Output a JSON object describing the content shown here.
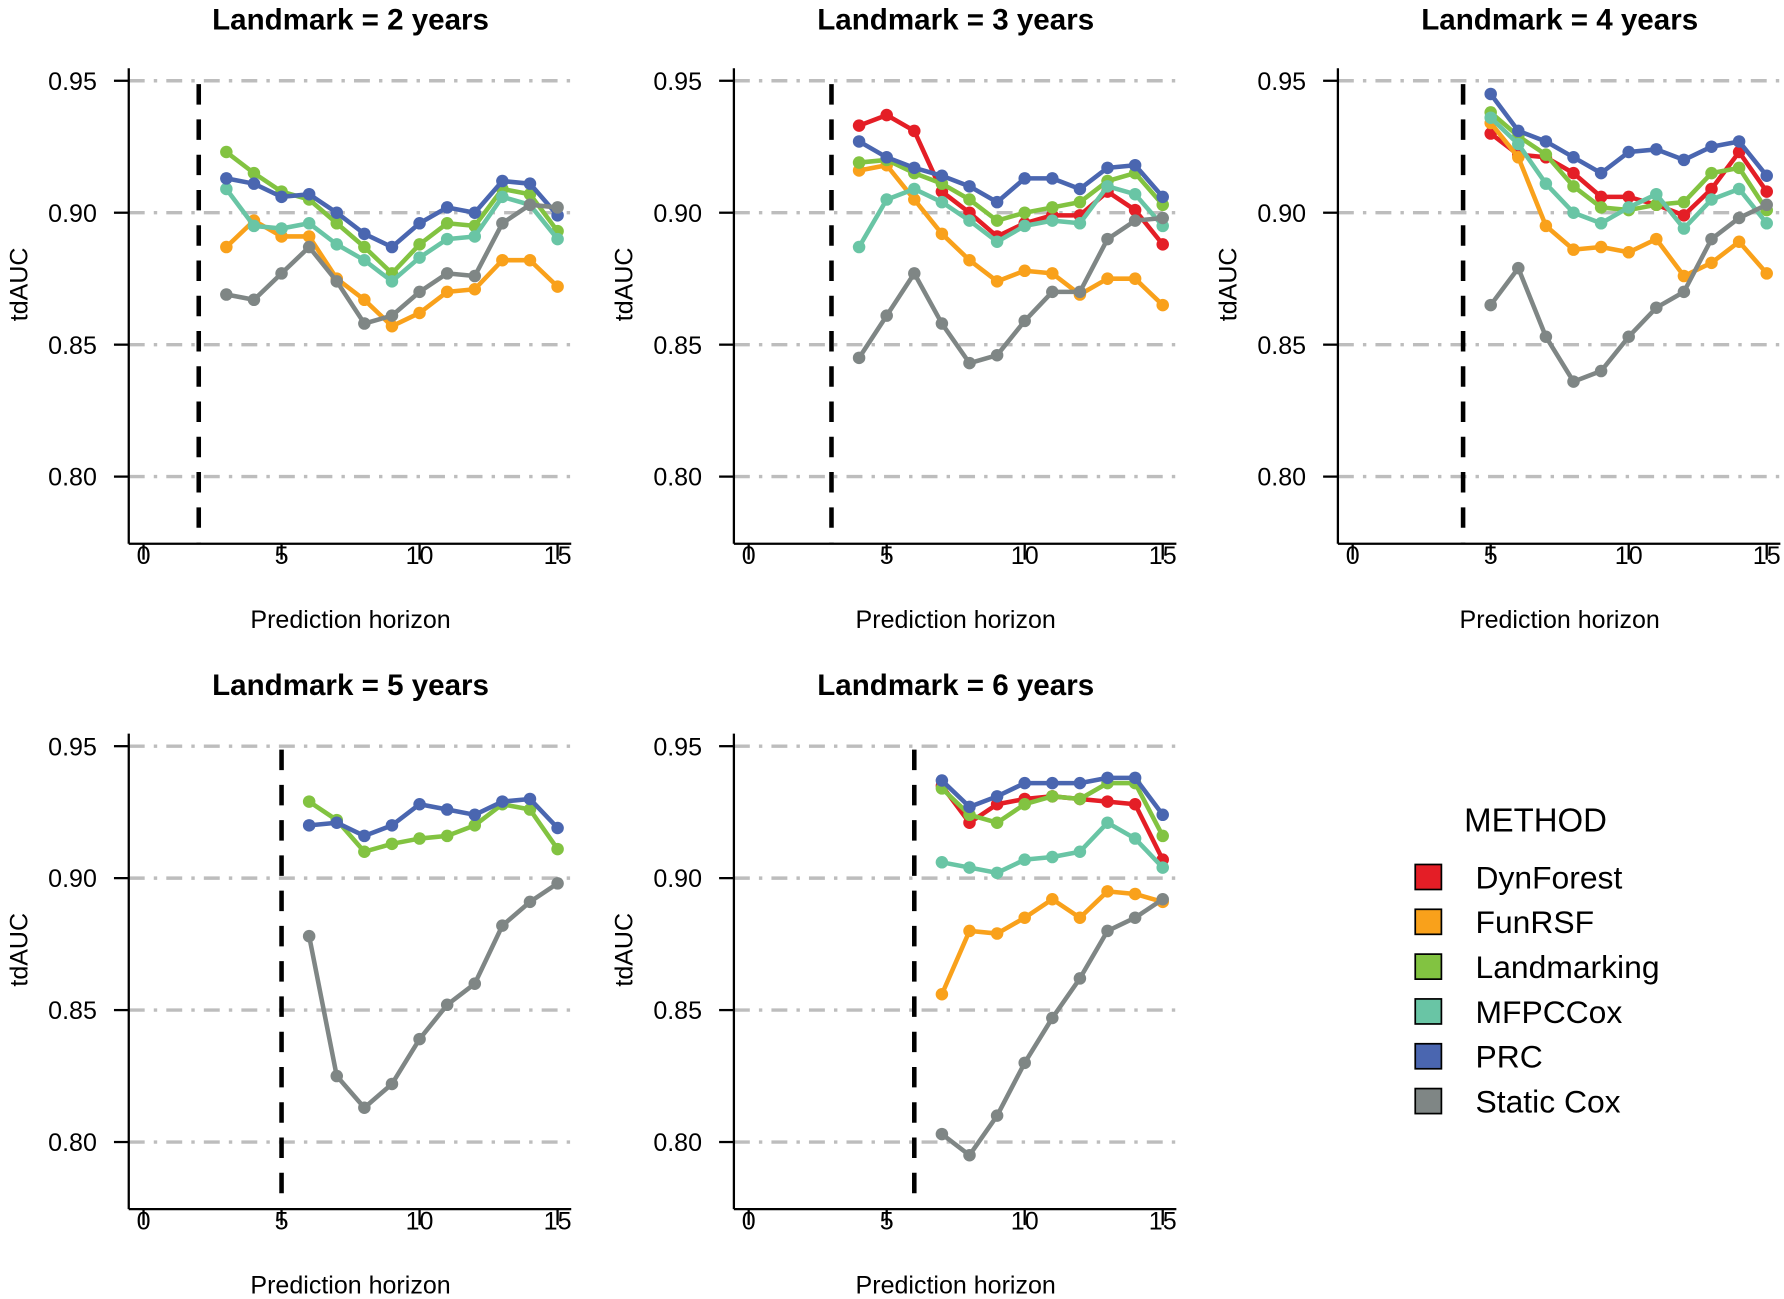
{
  "chart_data": [
    {
      "type": "line",
      "title": "Landmark = 2 years",
      "landmark": 2,
      "xlabel": "Prediction horizon",
      "ylabel": "tdAUC",
      "xlim": [
        0,
        15
      ],
      "ylim": [
        0.8,
        0.95
      ],
      "xticks": [
        "0",
        "5",
        "10",
        "15"
      ],
      "yticks": [
        "0.80",
        "0.85",
        "0.90",
        "0.95"
      ],
      "grid": "horizontal dash-dot",
      "x": [
        3,
        4,
        5,
        6,
        7,
        8,
        9,
        10,
        11,
        12,
        13,
        14,
        15
      ],
      "series": [
        {
          "name": "FunRSF",
          "values": [
            0.887,
            0.897,
            0.891,
            0.891,
            0.875,
            0.867,
            0.857,
            0.862,
            0.87,
            0.871,
            0.882,
            0.882,
            0.872
          ]
        },
        {
          "name": "Landmarking",
          "values": [
            0.923,
            0.915,
            0.908,
            0.905,
            0.896,
            0.887,
            0.877,
            0.888,
            0.896,
            0.895,
            0.909,
            0.907,
            0.893
          ]
        },
        {
          "name": "MFPCCox",
          "values": [
            0.909,
            0.895,
            0.894,
            0.896,
            0.888,
            0.882,
            0.874,
            0.883,
            0.89,
            0.891,
            0.906,
            0.903,
            0.89
          ]
        },
        {
          "name": "PRC",
          "values": [
            0.913,
            0.911,
            0.906,
            0.907,
            0.9,
            0.892,
            0.887,
            0.896,
            0.902,
            0.9,
            0.912,
            0.911,
            0.899
          ]
        },
        {
          "name": "Static Cox",
          "values": [
            0.869,
            0.867,
            0.877,
            0.887,
            0.874,
            0.858,
            0.861,
            0.87,
            0.877,
            0.876,
            0.896,
            0.903,
            0.902
          ]
        }
      ]
    },
    {
      "type": "line",
      "title": "Landmark = 3 years",
      "landmark": 3,
      "xlabel": "Prediction horizon",
      "ylabel": "tdAUC",
      "xlim": [
        0,
        15
      ],
      "ylim": [
        0.8,
        0.95
      ],
      "xticks": [
        "0",
        "5",
        "10",
        "15"
      ],
      "yticks": [
        "0.80",
        "0.85",
        "0.90",
        "0.95"
      ],
      "grid": "horizontal dash-dot",
      "x": [
        4,
        5,
        6,
        7,
        8,
        9,
        10,
        11,
        12,
        13,
        14,
        15
      ],
      "series": [
        {
          "name": "DynForest",
          "values": [
            0.933,
            0.937,
            0.931,
            0.908,
            0.9,
            0.891,
            0.896,
            0.899,
            0.899,
            0.908,
            0.901,
            0.888
          ]
        },
        {
          "name": "FunRSF",
          "values": [
            0.916,
            0.918,
            0.905,
            0.892,
            0.882,
            0.874,
            0.878,
            0.877,
            0.869,
            0.875,
            0.875,
            0.865
          ]
        },
        {
          "name": "Landmarking",
          "values": [
            0.919,
            0.92,
            0.915,
            0.911,
            0.905,
            0.897,
            0.9,
            0.902,
            0.904,
            0.912,
            0.915,
            0.903
          ]
        },
        {
          "name": "MFPCCox",
          "values": [
            0.887,
            0.905,
            0.909,
            0.904,
            0.897,
            0.889,
            0.895,
            0.897,
            0.896,
            0.91,
            0.907,
            0.895
          ]
        },
        {
          "name": "PRC",
          "values": [
            0.927,
            0.921,
            0.917,
            0.914,
            0.91,
            0.904,
            0.913,
            0.913,
            0.909,
            0.917,
            0.918,
            0.906
          ]
        },
        {
          "name": "Static Cox",
          "values": [
            0.845,
            0.861,
            0.877,
            0.858,
            0.843,
            0.846,
            0.859,
            0.87,
            0.87,
            0.89,
            0.897,
            0.898
          ]
        }
      ]
    },
    {
      "type": "line",
      "title": "Landmark = 4 years",
      "landmark": 4,
      "xlabel": "Prediction horizon",
      "ylabel": "tdAUC",
      "xlim": [
        0,
        15
      ],
      "ylim": [
        0.8,
        0.95
      ],
      "xticks": [
        "0",
        "5",
        "10",
        "15"
      ],
      "yticks": [
        "0.80",
        "0.85",
        "0.90",
        "0.95"
      ],
      "grid": "horizontal dash-dot",
      "x": [
        5,
        6,
        7,
        8,
        9,
        10,
        11,
        12,
        13,
        14,
        15
      ],
      "series": [
        {
          "name": "DynForest",
          "values": [
            0.93,
            0.922,
            0.921,
            0.915,
            0.906,
            0.906,
            0.903,
            0.899,
            0.909,
            0.923,
            0.908
          ]
        },
        {
          "name": "FunRSF",
          "values": [
            0.934,
            0.921,
            0.895,
            0.886,
            0.887,
            0.885,
            0.89,
            0.876,
            0.881,
            0.889,
            0.877
          ]
        },
        {
          "name": "Landmarking",
          "values": [
            0.938,
            0.929,
            0.922,
            0.91,
            0.902,
            0.901,
            0.903,
            0.904,
            0.915,
            0.917,
            0.901
          ]
        },
        {
          "name": "MFPCCox",
          "values": [
            0.936,
            0.926,
            0.911,
            0.9,
            0.896,
            0.902,
            0.907,
            0.894,
            0.905,
            0.909,
            0.896
          ]
        },
        {
          "name": "PRC",
          "values": [
            0.945,
            0.931,
            0.927,
            0.921,
            0.915,
            0.923,
            0.924,
            0.92,
            0.925,
            0.927,
            0.914
          ]
        },
        {
          "name": "Static Cox",
          "values": [
            0.865,
            0.879,
            0.853,
            0.836,
            0.84,
            0.853,
            0.864,
            0.87,
            0.89,
            0.898,
            0.903
          ]
        }
      ]
    },
    {
      "type": "line",
      "title": "Landmark = 5 years",
      "landmark": 5,
      "xlabel": "Prediction horizon",
      "ylabel": "tdAUC",
      "xlim": [
        0,
        15
      ],
      "ylim": [
        0.8,
        0.95
      ],
      "xticks": [
        "0",
        "5",
        "10",
        "15"
      ],
      "yticks": [
        "0.80",
        "0.85",
        "0.90",
        "0.95"
      ],
      "grid": "horizontal dash-dot",
      "x": [
        6,
        7,
        8,
        9,
        10,
        11,
        12,
        13,
        14,
        15
      ],
      "series": [
        {
          "name": "Landmarking",
          "values": [
            0.929,
            0.922,
            0.91,
            0.913,
            0.915,
            0.916,
            0.92,
            0.928,
            0.926,
            0.911
          ]
        },
        {
          "name": "PRC",
          "values": [
            0.92,
            0.921,
            0.916,
            0.92,
            0.928,
            0.926,
            0.924,
            0.929,
            0.93,
            0.919
          ]
        },
        {
          "name": "Static Cox",
          "values": [
            0.878,
            0.825,
            0.813,
            0.822,
            0.839,
            0.852,
            0.86,
            0.882,
            0.891,
            0.898
          ]
        }
      ]
    },
    {
      "type": "line",
      "title": "Landmark = 6 years",
      "landmark": 6,
      "xlabel": "Prediction horizon",
      "ylabel": "tdAUC",
      "xlim": [
        0,
        15
      ],
      "ylim": [
        0.8,
        0.95
      ],
      "xticks": [
        "0",
        "5",
        "10",
        "15"
      ],
      "yticks": [
        "0.80",
        "0.85",
        "0.90",
        "0.95"
      ],
      "grid": "horizontal dash-dot",
      "x": [
        7,
        8,
        9,
        10,
        11,
        12,
        13,
        14,
        15
      ],
      "series": [
        {
          "name": "DynForest",
          "values": [
            0.935,
            0.921,
            0.928,
            0.93,
            0.931,
            0.93,
            0.929,
            0.928,
            0.907
          ]
        },
        {
          "name": "FunRSF",
          "values": [
            0.856,
            0.88,
            0.879,
            0.885,
            0.892,
            0.885,
            0.895,
            0.894,
            0.891
          ]
        },
        {
          "name": "Landmarking",
          "values": [
            0.934,
            0.924,
            0.921,
            0.928,
            0.931,
            0.93,
            0.936,
            0.936,
            0.916
          ]
        },
        {
          "name": "MFPCCox",
          "values": [
            0.906,
            0.904,
            0.902,
            0.907,
            0.908,
            0.91,
            0.921,
            0.915,
            0.904
          ]
        },
        {
          "name": "PRC",
          "values": [
            0.937,
            0.927,
            0.931,
            0.936,
            0.936,
            0.936,
            0.938,
            0.938,
            0.924
          ]
        },
        {
          "name": "Static Cox",
          "values": [
            0.803,
            0.795,
            0.81,
            0.83,
            0.847,
            0.862,
            0.88,
            0.885,
            0.892
          ]
        }
      ]
    }
  ],
  "legend": {
    "title": "METHOD",
    "placement": "bottom-right",
    "items": [
      {
        "name": "DynForest",
        "color": "#E41E26"
      },
      {
        "name": "FunRSF",
        "color": "#F9A11B"
      },
      {
        "name": "Landmarking",
        "color": "#82C341"
      },
      {
        "name": "MFPCCox",
        "color": "#69C5A5"
      },
      {
        "name": "PRC",
        "color": "#4A66B0"
      },
      {
        "name": "Static Cox",
        "color": "#7F8685"
      }
    ]
  },
  "colors": {
    "grid": "#BDBDBD",
    "axis": "#000000",
    "landmark_line": "#000000"
  }
}
